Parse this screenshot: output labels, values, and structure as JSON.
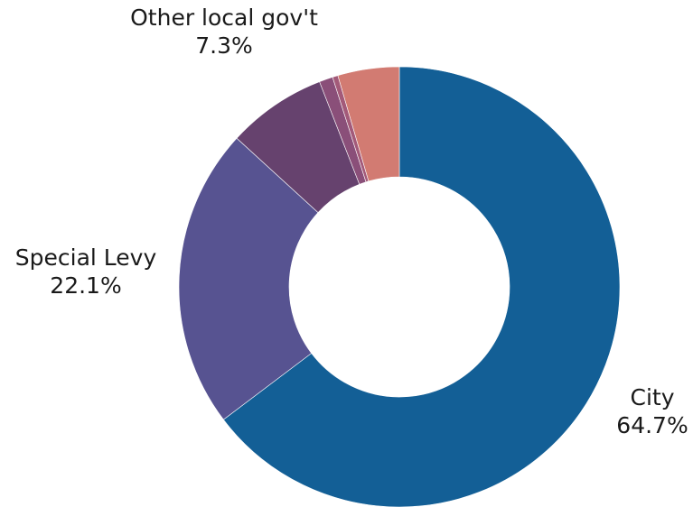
{
  "chart_data": {
    "type": "pie",
    "title": "",
    "donut": true,
    "slices": [
      {
        "label": "City",
        "value": 64.7,
        "display": "64.7%",
        "color": "#135f96",
        "labeled": true
      },
      {
        "label": "Special Levy",
        "value": 22.1,
        "display": "22.1%",
        "color": "#575391",
        "labeled": true
      },
      {
        "label": "Other local gov't",
        "value": 7.3,
        "display": "7.3%",
        "color": "#66426e",
        "labeled": true
      },
      {
        "label": "",
        "value": 1.0,
        "display": "",
        "color": "#8a4f79",
        "labeled": false
      },
      {
        "label": "",
        "value": 0.4,
        "display": "",
        "color": "#a35a79",
        "labeled": false
      },
      {
        "label": "",
        "value": 4.5,
        "display": "",
        "color": "#d27b72",
        "labeled": false
      }
    ],
    "legend": "none"
  }
}
